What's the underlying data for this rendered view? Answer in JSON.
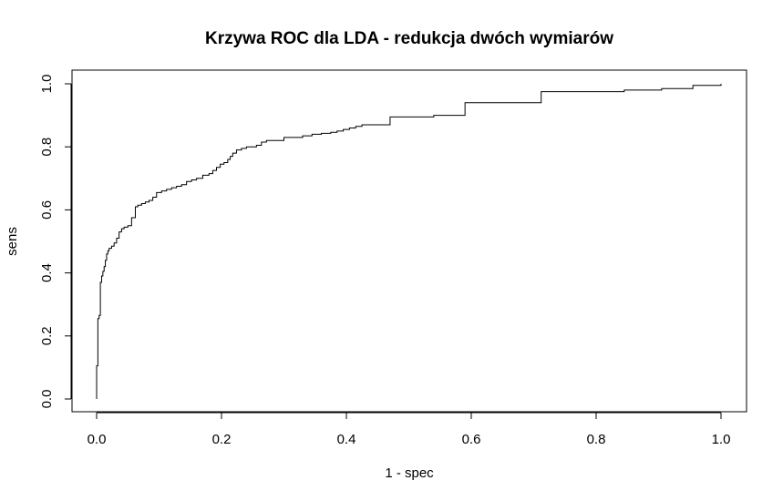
{
  "chart_data": {
    "type": "line",
    "title": "Krzywa ROC dla LDA - redukcja dwóch wymiarów",
    "xlabel": "1 - spec",
    "ylabel": "sens",
    "xlim": [
      0,
      1
    ],
    "ylim": [
      0,
      1
    ],
    "x_ticks": [
      "0.0",
      "0.2",
      "0.4",
      "0.6",
      "0.8",
      "1.0"
    ],
    "y_ticks": [
      "0.0",
      "0.2",
      "0.4",
      "0.6",
      "0.8",
      "1.0"
    ],
    "grid": false,
    "legend": "none",
    "line_style": "step",
    "line_color": "#000000",
    "series": [
      {
        "x": [
          0.0,
          0.0,
          0.002,
          0.002,
          0.004,
          0.004,
          0.006,
          0.006,
          0.008,
          0.008,
          0.01,
          0.01,
          0.012,
          0.014,
          0.016,
          0.018,
          0.02,
          0.024,
          0.028,
          0.032,
          0.036,
          0.04,
          0.044,
          0.05,
          0.056,
          0.062,
          0.066,
          0.072,
          0.078,
          0.084,
          0.09,
          0.096,
          0.104,
          0.112,
          0.12,
          0.128,
          0.136,
          0.144,
          0.152,
          0.16,
          0.17,
          0.18,
          0.186,
          0.192,
          0.198,
          0.204,
          0.21,
          0.214,
          0.218,
          0.224,
          0.232,
          0.24,
          0.256,
          0.264,
          0.272,
          0.3,
          0.33,
          0.345,
          0.36,
          0.375,
          0.385,
          0.395,
          0.405,
          0.415,
          0.425,
          0.47,
          0.54,
          0.59,
          0.712,
          0.845,
          0.905,
          0.955,
          1.0
        ],
        "y": [
          0.0,
          0.105,
          0.105,
          0.255,
          0.255,
          0.265,
          0.265,
          0.37,
          0.37,
          0.39,
          0.39,
          0.405,
          0.42,
          0.44,
          0.46,
          0.47,
          0.478,
          0.485,
          0.495,
          0.51,
          0.53,
          0.54,
          0.545,
          0.55,
          0.575,
          0.61,
          0.615,
          0.62,
          0.625,
          0.63,
          0.64,
          0.655,
          0.66,
          0.665,
          0.67,
          0.675,
          0.68,
          0.69,
          0.695,
          0.7,
          0.71,
          0.715,
          0.725,
          0.735,
          0.745,
          0.75,
          0.76,
          0.77,
          0.78,
          0.79,
          0.795,
          0.8,
          0.805,
          0.815,
          0.82,
          0.83,
          0.835,
          0.84,
          0.843,
          0.846,
          0.85,
          0.855,
          0.86,
          0.865,
          0.87,
          0.895,
          0.9,
          0.94,
          0.975,
          0.98,
          0.985,
          0.995,
          1.0
        ]
      }
    ]
  }
}
